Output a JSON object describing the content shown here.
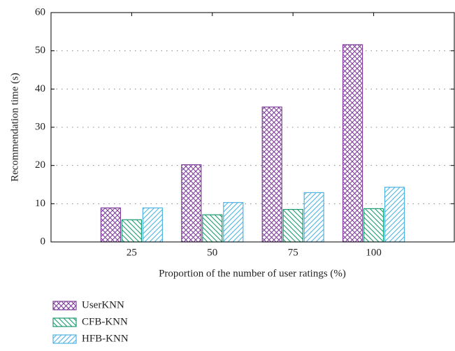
{
  "chart_data": {
    "type": "bar",
    "x_label": "Proportion of the number of user ratings (%)",
    "y_label": "Recommendation time (s)",
    "x": [
      25,
      50,
      75,
      100
    ],
    "xlim": [
      0,
      125
    ],
    "xticks": [
      25,
      50,
      75,
      100
    ],
    "ylim": [
      0,
      60
    ],
    "yticks": [
      0,
      10,
      20,
      30,
      40,
      50,
      60
    ],
    "grid": true,
    "legend": "bottom-left",
    "series": [
      {
        "name": "UserKNN",
        "color": "#7d3f98",
        "hatch": "cross",
        "values": [
          8.9,
          20.2,
          35.3,
          51.6
        ]
      },
      {
        "name": "CFB-KNN",
        "color": "#1b9a6c",
        "hatch": "backslash",
        "values": [
          5.8,
          7.1,
          8.5,
          8.7
        ]
      },
      {
        "name": "HFB-KNN",
        "color": "#4fb4e2",
        "hatch": "slash",
        "values": [
          8.9,
          10.3,
          12.9,
          14.3
        ]
      }
    ]
  }
}
